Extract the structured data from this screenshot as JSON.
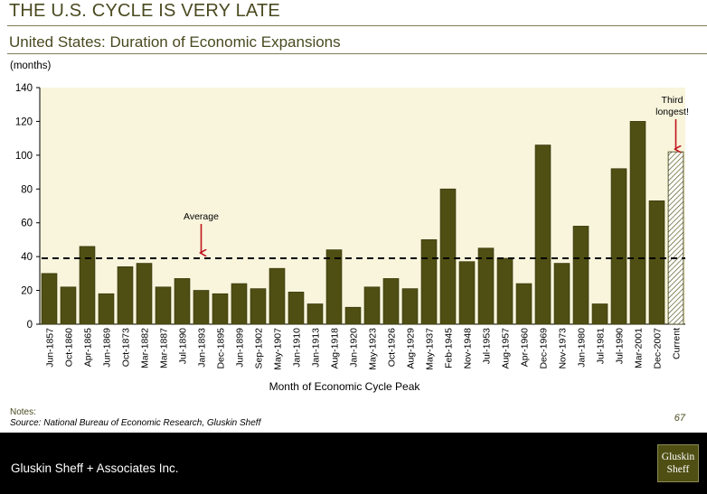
{
  "slide": {
    "title": "THE U.S. CYCLE IS VERY LATE",
    "chart_title": "United States: Duration of Economic Expansions",
    "unit_label": "(months)",
    "notes_label": "Notes:",
    "source": "Source: National Bureau of Economic Research, Gluskin Sheff",
    "page_number": "67"
  },
  "footer": {
    "company": "Gluskin Sheff + Associates Inc.",
    "logo_line1": "Gluskin",
    "logo_line2": "Sheff"
  },
  "colors": {
    "bar": "#4f4f14",
    "bar_stroke": "#3a3a0c",
    "plot_bg": "#f8f5dc",
    "arrow": "#c0141b",
    "title": "#4a4a20"
  },
  "chart_data": {
    "type": "bar",
    "title": "United States: Duration of Economic Expansions",
    "xlabel": "Month of Economic Cycle Peak",
    "ylabel": "(months)",
    "ylim": [
      0,
      140
    ],
    "yticks": [
      0,
      20,
      40,
      60,
      80,
      100,
      120,
      140
    ],
    "grid": false,
    "categories": [
      "Jun-1857",
      "Oct-1860",
      "Apr-1865",
      "Jun-1869",
      "Oct-1873",
      "Mar-1882",
      "Mar-1887",
      "Jul-1890",
      "Jan-1893",
      "Dec-1895",
      "Jun-1899",
      "Sep-1902",
      "May-1907",
      "Jan-1910",
      "Jan-1913",
      "Aug-1918",
      "Jan-1920",
      "May-1923",
      "Oct-1926",
      "Aug-1929",
      "May-1937",
      "Feb-1945",
      "Nov-1948",
      "Jul-1953",
      "Aug-1957",
      "Apr-1960",
      "Dec-1969",
      "Nov-1973",
      "Jan-1980",
      "Jul-1981",
      "Jul-1990",
      "Mar-2001",
      "Dec-2007",
      "Current"
    ],
    "values": [
      30,
      22,
      46,
      18,
      34,
      36,
      22,
      27,
      20,
      18,
      24,
      21,
      33,
      19,
      12,
      44,
      10,
      22,
      27,
      21,
      50,
      80,
      37,
      45,
      39,
      24,
      106,
      36,
      58,
      12,
      92,
      120,
      73,
      102
    ],
    "highlight_category": "Current",
    "average_line": {
      "value": 39,
      "label": "Average"
    },
    "annotations": [
      {
        "text": "Average",
        "points_to": "Jan-1893"
      },
      {
        "text": "Third longest!",
        "points_to": "Current"
      }
    ]
  }
}
